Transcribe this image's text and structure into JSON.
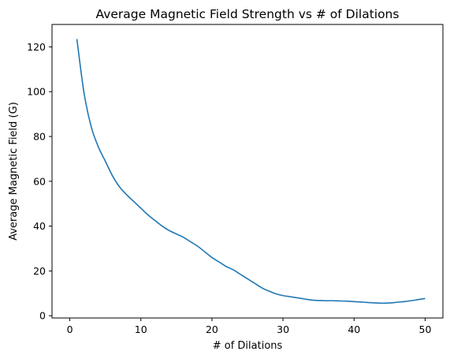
{
  "chart_data": {
    "type": "line",
    "title": "Average Magnetic Field Strength vs # of Dilations",
    "xlabel": "# of Dilations",
    "ylabel": "Average Magnetic Field (G)",
    "xlim": [
      -2.5,
      52.5
    ],
    "ylim": [
      -1,
      130
    ],
    "xticks": [
      0,
      10,
      20,
      30,
      40,
      50
    ],
    "yticks": [
      0,
      20,
      40,
      60,
      80,
      100,
      120
    ],
    "grid": false,
    "legend": "none",
    "series": [
      {
        "color": "#1f77b4",
        "x": [
          1,
          2,
          3,
          4,
          5,
          6,
          7,
          8,
          9,
          10,
          11,
          12,
          13,
          14,
          15,
          16,
          17,
          18,
          19,
          20,
          21,
          22,
          23,
          24,
          25,
          26,
          27,
          28,
          29,
          30,
          31,
          32,
          33,
          34,
          35,
          36,
          37,
          38,
          39,
          40,
          41,
          42,
          43,
          44,
          45,
          46,
          47,
          48,
          49,
          50
        ],
        "y": [
          123.5,
          99.5,
          84.5,
          75.5,
          69,
          62.5,
          57.5,
          54,
          51,
          48,
          45,
          42.5,
          40,
          38,
          36.5,
          35,
          33,
          31,
          28.5,
          26,
          24,
          22,
          20.5,
          18.5,
          16.5,
          14.5,
          12.5,
          11,
          9.8,
          9,
          8.5,
          8,
          7.5,
          7,
          6.8,
          6.7,
          6.7,
          6.6,
          6.5,
          6.3,
          6.1,
          5.9,
          5.7,
          5.6,
          5.7,
          6,
          6.3,
          6.7,
          7.2,
          7.7
        ]
      }
    ]
  }
}
